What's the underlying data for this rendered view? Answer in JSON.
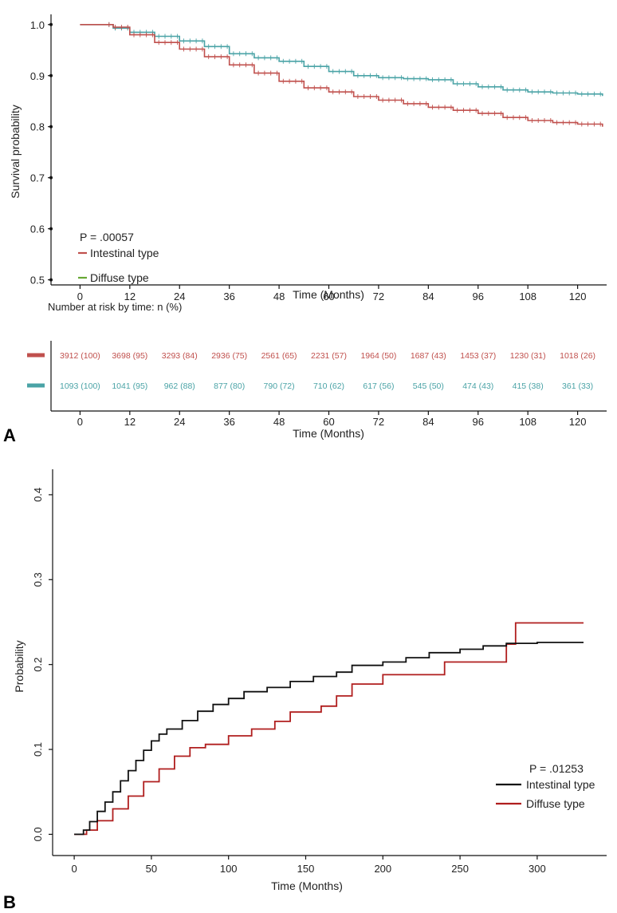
{
  "colors": {
    "intestinal_a": "#c0504d",
    "diffuse_a": "#4aa3a6",
    "diffuse_a_legend": "#66a834",
    "intestinal_b": "#111111",
    "diffuse_b": "#b01e1e",
    "axis": "#111111"
  },
  "chart_data": [
    {
      "panel": "A",
      "type": "line",
      "xlabel": "Time (Months)",
      "ylabel": "Survival probability",
      "xlim": [
        -7,
        127
      ],
      "ylim": [
        0.49,
        1.02
      ],
      "xticks": [
        0,
        12,
        24,
        36,
        48,
        60,
        72,
        84,
        96,
        108,
        120
      ],
      "yticks": [
        0.5,
        0.6,
        0.7,
        0.8,
        0.9,
        1.0
      ],
      "ytick_labels": [
        "0.5",
        "0.6",
        "0.7",
        "0.8",
        "0.9",
        "1.0"
      ],
      "grid": false,
      "p_value": "P = .00057",
      "legend": [
        "Intestinal type",
        "Diffuse type"
      ],
      "series": [
        {
          "name": "Intestinal type",
          "x": [
            0,
            6,
            8,
            12,
            18,
            24,
            30,
            36,
            42,
            48,
            54,
            60,
            66,
            72,
            78,
            84,
            90,
            96,
            102,
            108,
            114,
            120,
            126
          ],
          "y": [
            1.0,
            1.0,
            0.995,
            0.98,
            0.965,
            0.952,
            0.937,
            0.921,
            0.905,
            0.889,
            0.876,
            0.868,
            0.859,
            0.852,
            0.845,
            0.838,
            0.832,
            0.826,
            0.818,
            0.812,
            0.808,
            0.805,
            0.8
          ]
        },
        {
          "name": "Diffuse type",
          "x": [
            0,
            6,
            8,
            12,
            18,
            24,
            30,
            36,
            42,
            48,
            54,
            60,
            66,
            72,
            78,
            84,
            90,
            96,
            102,
            108,
            114,
            120,
            126
          ],
          "y": [
            1.0,
            1.0,
            0.993,
            0.985,
            0.977,
            0.968,
            0.957,
            0.943,
            0.935,
            0.928,
            0.918,
            0.908,
            0.9,
            0.896,
            0.894,
            0.892,
            0.884,
            0.878,
            0.872,
            0.868,
            0.866,
            0.864,
            0.86
          ]
        }
      ],
      "risk_table": {
        "title": "Number at risk by time: n (%)",
        "xlabel": "Time (Months)",
        "rows": [
          {
            "name": "Intestinal type",
            "values": [
              "3912 (100)",
              "3698 (95)",
              "3293 (84)",
              "2936 (75)",
              "2561 (65)",
              "2231 (57)",
              "1964 (50)",
              "1687 (43)",
              "1453 (37)",
              "1230 (31)",
              "1018 (26)"
            ]
          },
          {
            "name": "Diffuse type",
            "values": [
              "1093 (100)",
              "1041 (95)",
              "962 (88)",
              "877 (80)",
              "790 (72)",
              "710 (62)",
              "617 (56)",
              "545 (50)",
              "474 (43)",
              "415 (38)",
              "361 (33)"
            ]
          }
        ]
      }
    },
    {
      "panel": "B",
      "type": "line",
      "xlabel": "Time (Months)",
      "ylabel": "Probability",
      "xlim": [
        -14,
        345
      ],
      "ylim": [
        -0.025,
        0.43
      ],
      "xticks": [
        0,
        50,
        100,
        150,
        200,
        250,
        300
      ],
      "yticks": [
        0.0,
        0.1,
        0.2,
        0.3,
        0.4
      ],
      "ytick_labels": [
        "0.0",
        "0.1",
        "0.2",
        "0.3",
        "0.4"
      ],
      "grid": false,
      "p_value": "P = .01253",
      "legend": [
        "Intestinal type",
        "Diffuse type"
      ],
      "series": [
        {
          "name": "Intestinal type",
          "x": [
            0,
            5,
            6,
            10,
            15,
            20,
            25,
            30,
            35,
            40,
            45,
            50,
            55,
            60,
            70,
            80,
            90,
            100,
            110,
            125,
            140,
            155,
            170,
            180,
            200,
            215,
            230,
            250,
            265,
            280,
            300,
            330
          ],
          "y": [
            0,
            0,
            0.005,
            0.015,
            0.027,
            0.038,
            0.05,
            0.063,
            0.075,
            0.087,
            0.099,
            0.11,
            0.118,
            0.124,
            0.134,
            0.145,
            0.153,
            0.16,
            0.168,
            0.173,
            0.18,
            0.186,
            0.191,
            0.199,
            0.203,
            0.208,
            0.214,
            0.218,
            0.222,
            0.225,
            0.226,
            0.226
          ]
        },
        {
          "name": "Diffuse type",
          "x": [
            0,
            6,
            8,
            15,
            25,
            35,
            45,
            55,
            65,
            75,
            85,
            100,
            115,
            130,
            140,
            160,
            170,
            180,
            200,
            230,
            240,
            277,
            280,
            286,
            330
          ],
          "y": [
            0,
            0,
            0.005,
            0.016,
            0.03,
            0.045,
            0.062,
            0.077,
            0.092,
            0.102,
            0.106,
            0.116,
            0.124,
            0.133,
            0.144,
            0.151,
            0.163,
            0.177,
            0.188,
            0.188,
            0.203,
            0.203,
            0.224,
            0.249,
            0.249
          ]
        }
      ]
    }
  ],
  "panel_labels": [
    "A",
    "B"
  ]
}
